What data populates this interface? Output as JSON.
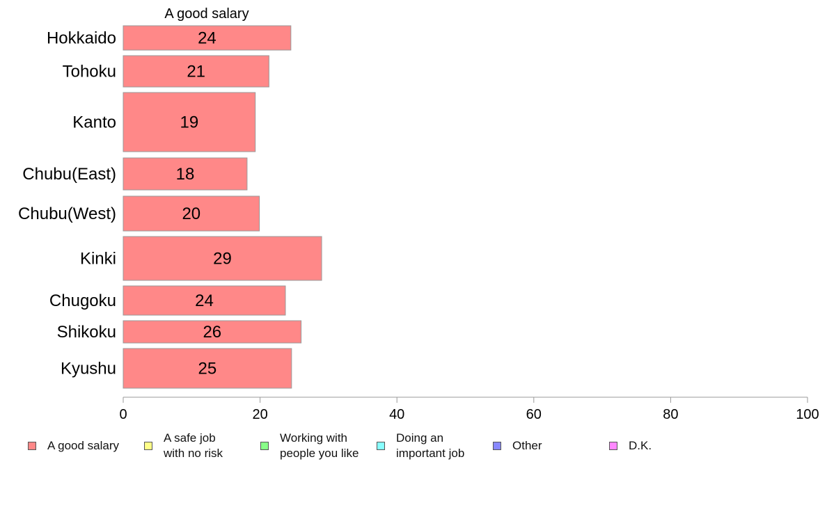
{
  "chart_data": {
    "type": "bar",
    "orientation": "horizontal",
    "title": "A good salary",
    "categories": [
      "Hokkaido",
      "Tohoku",
      "Kanto",
      "Chubu(East)",
      "Chubu(West)",
      "Kinki",
      "Chugoku",
      "Shikoku",
      "Kyushu"
    ],
    "values": [
      24.5,
      21.3,
      19.3,
      18.1,
      19.9,
      29.0,
      23.7,
      26.0,
      24.6
    ],
    "data_labels": [
      "24",
      "21",
      "19",
      "18",
      "20",
      "29",
      "24",
      "26",
      "25"
    ],
    "xlim": [
      0,
      100
    ],
    "xticks": [
      "0",
      "20",
      "40",
      "60",
      "80",
      "100"
    ],
    "grid": false,
    "legend_position": "bottom",
    "bar_color": "#ff8888",
    "legend": [
      {
        "label": "A good salary",
        "color": "#ff8888"
      },
      {
        "label": "A safe job\nwith no risk",
        "color": "#ffff88"
      },
      {
        "label": "Working with\npeople you like",
        "color": "#88ff88"
      },
      {
        "label": "Doing an\nimportant job",
        "color": "#88ffff"
      },
      {
        "label": "Other",
        "color": "#8888ff"
      },
      {
        "label": "D.K.",
        "color": "#ff88ff"
      }
    ]
  }
}
